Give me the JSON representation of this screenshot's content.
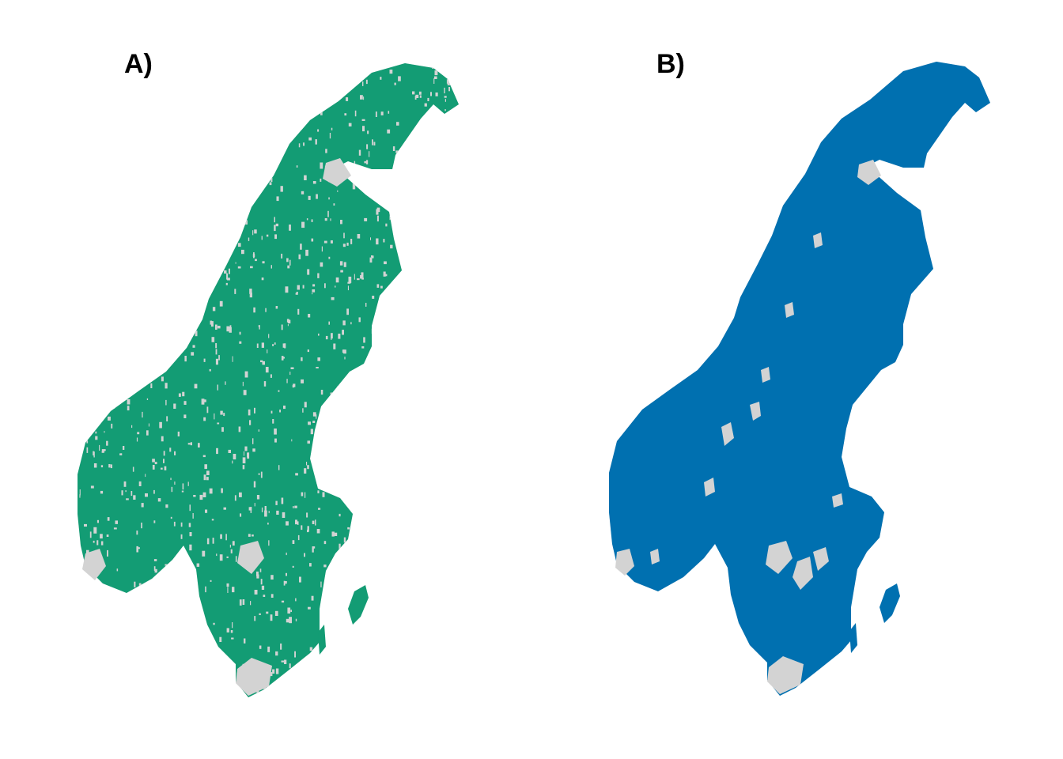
{
  "panels": [
    {
      "label": "A)",
      "fill_color": "#139c74",
      "background_color": "#d3d3d3"
    },
    {
      "label": "B)",
      "fill_color": "#0070b0",
      "background_color": "#d3d3d3"
    }
  ]
}
